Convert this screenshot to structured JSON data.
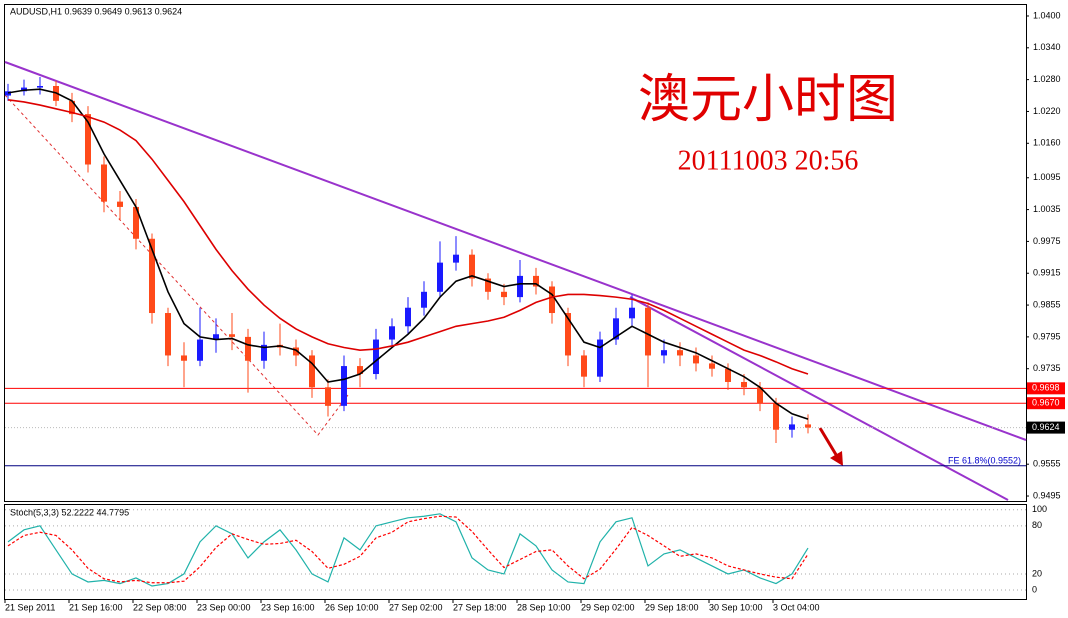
{
  "chart_data": [
    {
      "type": "candlestick",
      "title": "AUDUSD,H1  0.9639 0.9649 0.9613 0.9624",
      "annotations": [
        "澳元小时图",
        "20111003 20:56",
        "FE 61.8%(0.9552)"
      ],
      "categories": [
        "21 Sep 2011",
        null,
        null,
        null,
        "21 Sep 16:00",
        null,
        null,
        null,
        "22 Sep 08:00",
        null,
        null,
        null,
        "23 Sep 00:00",
        null,
        null,
        null,
        "23 Sep 16:00",
        null,
        null,
        null,
        "26 Sep 10:00",
        null,
        null,
        null,
        "27 Sep 02:00",
        null,
        null,
        null,
        "27 Sep 18:00",
        null,
        null,
        null,
        "28 Sep 10:00",
        null,
        null,
        null,
        "29 Sep 02:00",
        null,
        null,
        null,
        "29 Sep 18:00",
        null,
        null,
        null,
        "30 Sep 10:00",
        null,
        null,
        null,
        "3 Oct 04:00",
        null,
        null
      ],
      "open": [
        1.025,
        1.0258,
        1.0265,
        1.0268,
        1.024,
        1.0215,
        1.012,
        1.005,
        1.004,
        0.998,
        0.984,
        0.976,
        0.975,
        0.979,
        0.98,
        0.9795,
        0.975,
        0.978,
        0.9775,
        0.976,
        0.97,
        0.9665,
        0.974,
        0.9725,
        0.979,
        0.9815,
        0.985,
        0.988,
        0.9935,
        0.995,
        0.9905,
        0.988,
        0.987,
        0.991,
        0.989,
        0.984,
        0.976,
        0.972,
        0.979,
        0.983,
        0.985,
        0.976,
        0.977,
        0.976,
        0.9745,
        0.9735,
        0.971,
        0.97,
        0.967,
        0.962,
        0.963
      ],
      "high": [
        1.0272,
        1.028,
        1.0285,
        1.0278,
        1.0255,
        1.023,
        1.0135,
        1.007,
        1.0055,
        0.999,
        0.985,
        0.9785,
        0.985,
        0.983,
        0.984,
        0.981,
        0.9805,
        0.982,
        0.979,
        0.977,
        0.9715,
        0.976,
        0.9755,
        0.981,
        0.983,
        0.987,
        0.99,
        0.9975,
        0.9985,
        0.996,
        0.9915,
        0.9895,
        0.994,
        0.9925,
        0.99,
        0.985,
        0.977,
        0.9805,
        0.985,
        0.9875,
        0.986,
        0.979,
        0.9785,
        0.9775,
        0.976,
        0.9745,
        0.9725,
        0.971,
        0.968,
        0.9645,
        0.9649
      ],
      "low": [
        1.024,
        1.025,
        1.0252,
        1.023,
        1.02,
        1.0105,
        1.003,
        1.0015,
        0.996,
        0.982,
        0.974,
        0.97,
        0.974,
        0.9765,
        0.977,
        0.969,
        0.9735,
        0.976,
        0.974,
        0.968,
        0.9645,
        0.9655,
        0.97,
        0.9715,
        0.9775,
        0.98,
        0.9835,
        0.987,
        0.992,
        0.989,
        0.9865,
        0.9855,
        0.986,
        0.9875,
        0.982,
        0.974,
        0.97,
        0.971,
        0.978,
        0.9815,
        0.97,
        0.9745,
        0.974,
        0.973,
        0.972,
        0.9695,
        0.9685,
        0.9655,
        0.9595,
        0.9605,
        0.9613
      ],
      "close": [
        1.0258,
        1.0265,
        1.0268,
        1.024,
        1.0215,
        1.012,
        1.005,
        1.004,
        0.998,
        0.984,
        0.976,
        0.975,
        0.979,
        0.98,
        0.9795,
        0.975,
        0.978,
        0.9775,
        0.976,
        0.97,
        0.9665,
        0.974,
        0.9725,
        0.979,
        0.9815,
        0.985,
        0.988,
        0.9935,
        0.995,
        0.9905,
        0.988,
        0.987,
        0.991,
        0.989,
        0.984,
        0.976,
        0.972,
        0.979,
        0.983,
        0.985,
        0.976,
        0.977,
        0.976,
        0.9745,
        0.9735,
        0.971,
        0.97,
        0.967,
        0.962,
        0.963,
        0.9624
      ],
      "up_color": "#1a1aff",
      "down_color": "#ff4a1a",
      "overlays": [
        {
          "color": "#000000",
          "values": [
            1.0255,
            1.026,
            1.0262,
            1.0255,
            1.024,
            1.02,
            1.014,
            1.009,
            1.004,
            0.996,
            0.988,
            0.982,
            0.9795,
            0.979,
            0.9792,
            0.978,
            0.9775,
            0.9778,
            0.977,
            0.9745,
            0.971,
            0.9715,
            0.9725,
            0.975,
            0.9775,
            0.98,
            0.983,
            0.987,
            0.99,
            0.991,
            0.99,
            0.989,
            0.9895,
            0.9895,
            0.9875,
            0.983,
            0.9785,
            0.9775,
            0.9795,
            0.9815,
            0.98,
            0.9785,
            0.9775,
            0.9765,
            0.975,
            0.9735,
            0.972,
            0.97,
            0.967,
            0.965,
            0.964
          ]
        },
        {
          "color": "#dd0000",
          "values": [
            1.0242,
            1.0238,
            1.0232,
            1.0225,
            1.0218,
            1.021,
            1.02,
            1.0185,
            1.0165,
            1.013,
            1.009,
            1.005,
            1.0005,
            0.996,
            0.992,
            0.9885,
            0.9855,
            0.983,
            0.981,
            0.9795,
            0.9782,
            0.9775,
            0.977,
            0.9772,
            0.9778,
            0.9785,
            0.9795,
            0.9805,
            0.9815,
            0.982,
            0.9825,
            0.9832,
            0.9845,
            0.986,
            0.987,
            0.9875,
            0.9875,
            0.9873,
            0.987,
            0.9866,
            0.9858,
            0.9845,
            0.983,
            0.9815,
            0.98,
            0.9785,
            0.977,
            0.976,
            0.9748,
            0.9735,
            0.9725
          ]
        }
      ],
      "levels": [
        {
          "value": 0.9698,
          "label": "0.9698",
          "color": "#ff0000"
        },
        {
          "value": 0.967,
          "label": "0.9670",
          "color": "#ff0000"
        },
        {
          "value": 0.9552,
          "color": "#000080"
        }
      ],
      "current": {
        "value": 0.9624,
        "label": "0.9624"
      },
      "ylim": [
        0.94875,
        1.04207
      ],
      "yticks": [
        {
          "value": 1.04,
          "label": "1.0400"
        },
        {
          "value": 1.034,
          "label": "1.0340"
        },
        {
          "value": 1.028,
          "label": "1.0280"
        },
        {
          "value": 1.022,
          "label": "1.0220"
        },
        {
          "value": 1.016,
          "label": "1.0160"
        },
        {
          "value": 1.0095,
          "label": "1.0095"
        },
        {
          "value": 1.0035,
          "label": "1.0035"
        },
        {
          "value": 0.9975,
          "label": "0.9975"
        },
        {
          "value": 0.9915,
          "label": "0.9915"
        },
        {
          "value": 0.9855,
          "label": "0.9855"
        },
        {
          "value": 0.9795,
          "label": "0.9795"
        },
        {
          "value": 0.9735,
          "label": "0.9735"
        },
        {
          "value": 0.9555,
          "label": "0.9555"
        },
        {
          "value": 0.9495,
          "label": "0.9495"
        }
      ]
    },
    {
      "type": "line",
      "title": "Stoch(5,3,3) 52.2222 44.7795",
      "series": [
        {
          "color": "#20b2aa",
          "values": [
            60,
            75,
            80,
            50,
            20,
            10,
            12,
            8,
            15,
            5,
            8,
            20,
            60,
            80,
            70,
            40,
            60,
            75,
            50,
            20,
            10,
            65,
            50,
            80,
            85,
            90,
            92,
            95,
            85,
            40,
            25,
            20,
            70,
            55,
            25,
            10,
            8,
            60,
            85,
            90,
            30,
            45,
            50,
            40,
            30,
            20,
            25,
            15,
            8,
            20,
            52.2222
          ]
        },
        {
          "color": "#ff0000",
          "dashed": true,
          "values": [
            55,
            68,
            72,
            68,
            50,
            27,
            14,
            10,
            12,
            9,
            9,
            11,
            29,
            53,
            70,
            63,
            57,
            58,
            62,
            48,
            27,
            32,
            42,
            65,
            72,
            85,
            89,
            92,
            91,
            73,
            50,
            28,
            38,
            48,
            50,
            30,
            14,
            26,
            51,
            78,
            68,
            55,
            42,
            45,
            40,
            30,
            25,
            20,
            16,
            14,
            44.7795
          ]
        }
      ],
      "ylim": [
        -10,
        106
      ],
      "yticks": [
        0,
        20,
        80,
        100
      ]
    }
  ]
}
